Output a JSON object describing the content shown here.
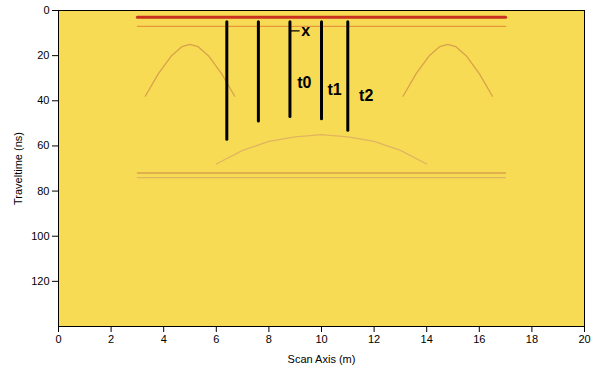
{
  "chart_data": {
    "type": "line",
    "x_label": "Scan Axis (m)",
    "y_label": "Traveltime (ns)",
    "xlim": [
      0,
      20
    ],
    "xticks": [
      0,
      2,
      4,
      6,
      8,
      10,
      12,
      14,
      16,
      18,
      20
    ],
    "ylim": [
      0,
      140
    ],
    "yticks": [
      0,
      20,
      40,
      60,
      80,
      100,
      120
    ],
    "grid": false,
    "color": "#f8db55",
    "series": [
      {
        "color": "#c8321e",
        "line_style": "thick",
        "x": [
          3,
          17
        ],
        "values": [
          3,
          3
        ]
      },
      {
        "color": "#e8963c",
        "line_style": "thin",
        "x": [
          3,
          17
        ],
        "values": [
          7,
          7
        ]
      },
      {
        "color": "#d9a24a",
        "line_style": "thin",
        "x": [
          3.3,
          3.8,
          4.3,
          4.7,
          5,
          5.3,
          5.7,
          6.2,
          6.7
        ],
        "values": [
          38,
          28,
          20,
          16,
          15,
          16,
          20,
          28,
          38
        ]
      },
      {
        "color": "#d9a24a",
        "line_style": "thin",
        "x": [
          13.1,
          13.6,
          14.1,
          14.5,
          14.8,
          15.1,
          15.5,
          16,
          16.5
        ],
        "values": [
          38,
          28,
          20,
          16,
          15,
          16,
          20,
          28,
          38
        ]
      },
      {
        "color": "#e0b560",
        "line_style": "thin",
        "x": [
          6,
          7,
          8,
          9,
          10,
          11,
          12,
          13,
          14
        ],
        "values": [
          68,
          62,
          58,
          56,
          55,
          56,
          58,
          62,
          68
        ]
      },
      {
        "color": "#d9a24a",
        "line_style": "thin",
        "x": [
          3,
          17
        ],
        "values": [
          72,
          72
        ]
      },
      {
        "color": "#e0b560",
        "line_style": "thin",
        "x": [
          3,
          17
        ],
        "values": [
          74,
          74
        ]
      },
      {
        "color": "#000000",
        "line_style": "thick",
        "x": [
          6.4,
          6.4
        ],
        "values": [
          5,
          57
        ]
      },
      {
        "color": "#000000",
        "line_style": "thick",
        "x": [
          7.6,
          7.6
        ],
        "values": [
          5,
          49
        ]
      },
      {
        "color": "#000000",
        "line_style": "thick",
        "x": [
          8.8,
          8.8
        ],
        "values": [
          5,
          47
        ]
      },
      {
        "color": "#000000",
        "line_style": "thick",
        "x": [
          10,
          10
        ],
        "values": [
          5,
          48
        ]
      },
      {
        "color": "#000000",
        "line_style": "thick",
        "x": [
          11,
          11
        ],
        "values": [
          5,
          53
        ]
      },
      {
        "color": "#000000",
        "line_style": "thin",
        "x": [
          8.8,
          9.15,
          9.65,
          10
        ],
        "values": [
          9,
          9,
          null,
          9
        ]
      }
    ],
    "annotations": [
      {
        "text": "x",
        "x": 9.4,
        "y": 9
      },
      {
        "text": "t0",
        "x": 9.35,
        "y": 32
      },
      {
        "text": "t1",
        "x": 10.5,
        "y": 35
      },
      {
        "text": "t2",
        "x": 11.7,
        "y": 38
      }
    ]
  }
}
